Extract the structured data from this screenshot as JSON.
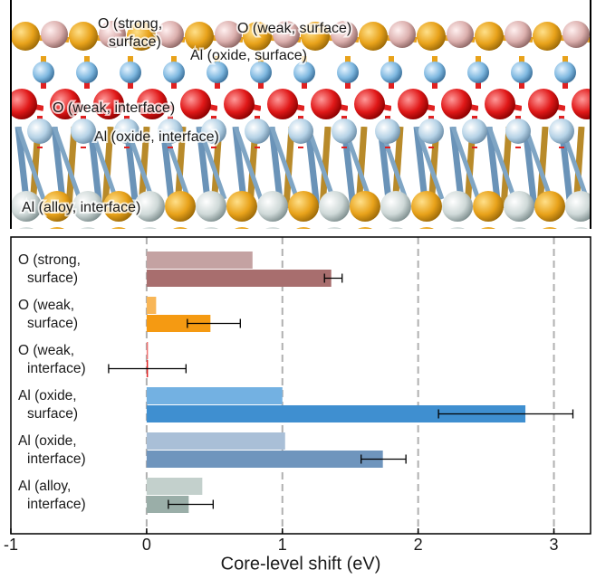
{
  "structure": {
    "labels": [
      [
        "O (strong,",
        "surface)"
      ],
      [
        "O (weak, surface)"
      ],
      [
        "Al (oxide, surface)"
      ],
      [
        "O (weak, interface)"
      ],
      [
        "Al (oxide, interface)"
      ],
      [
        "Al (alloy, interface)"
      ]
    ]
  },
  "chart_data": {
    "type": "bar",
    "orientation": "horizontal",
    "x_label": "Core-level shift (eV)",
    "categories": [
      [
        "O (strong,",
        "surface)"
      ],
      [
        "O (weak,",
        "surface)"
      ],
      [
        "O (weak,",
        "interface)"
      ],
      [
        "Al (oxide,",
        "surface)"
      ],
      [
        "Al (oxide,",
        "interface)"
      ],
      [
        "Al (alloy,",
        "interface)"
      ]
    ],
    "series": [
      {
        "colors": [
          "#c4a2a2",
          "#f8b657",
          "#f07070",
          "#73b1e2",
          "#a9bfd7",
          "#c3d0cc"
        ],
        "values": [
          0.78,
          0.07,
          0.01,
          1.0,
          1.02,
          0.41
        ]
      },
      {
        "colors": [
          "#a86e6e",
          "#f59a12",
          "#e02020",
          "#3f8fd0",
          "#6f95bd",
          "#9aaea8"
        ],
        "values": [
          1.36,
          0.47,
          0.01,
          2.79,
          1.74,
          0.31
        ],
        "errors": [
          [
            0.05,
            0.08
          ],
          [
            0.17,
            0.22
          ],
          [
            0.29,
            0.28
          ],
          [
            0.64,
            0.35
          ],
          [
            0.16,
            0.17
          ],
          [
            0.15,
            0.18
          ]
        ]
      }
    ],
    "xlim": [
      -1,
      3.27
    ],
    "xticks": [
      -1,
      0,
      1,
      2,
      3
    ],
    "grid": true
  }
}
